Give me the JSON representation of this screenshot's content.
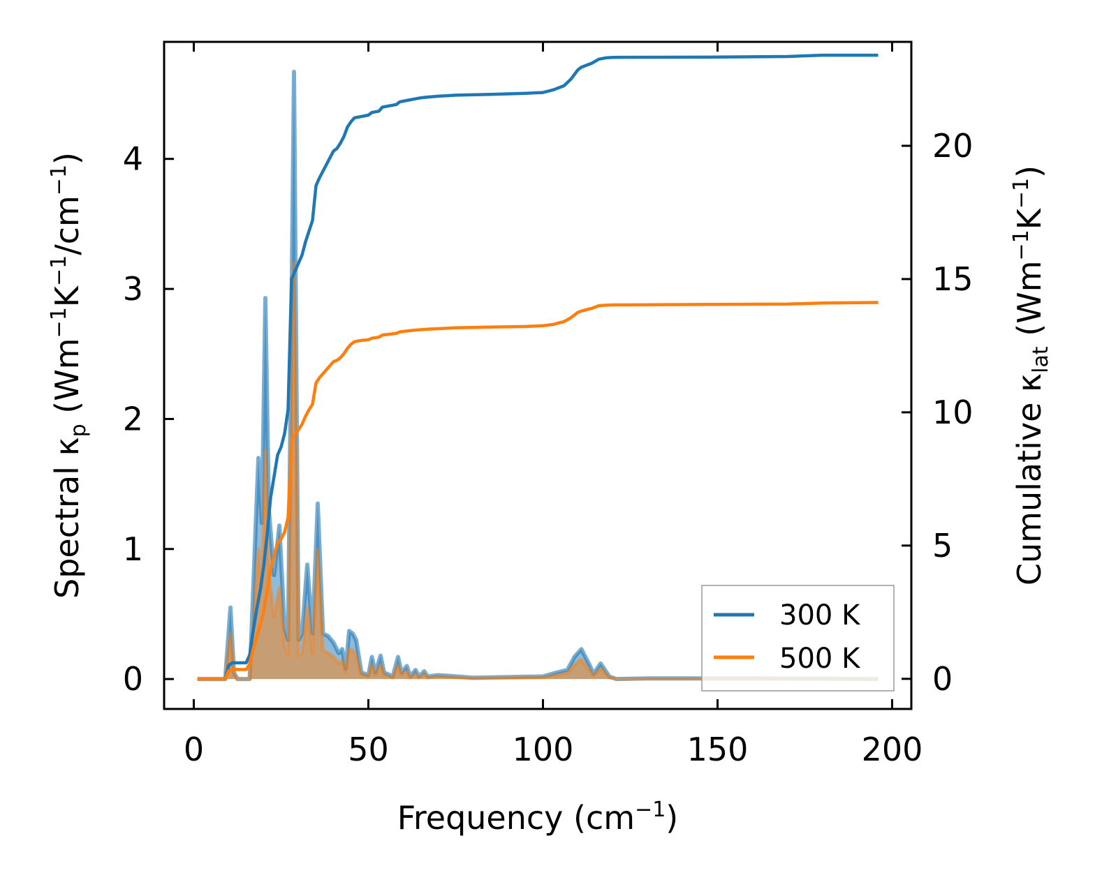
{
  "chart_data": {
    "type": "line",
    "title": "",
    "xlabel": {
      "base": "Frequency (cm",
      "sup": "−1",
      "tail": ")"
    },
    "ylabel_left": {
      "parts": [
        "Spectral κ",
        "p",
        " (Wm",
        "−1",
        "K",
        "−1",
        "/cm",
        "−1",
        ")"
      ],
      "kinds": [
        "n",
        "sub",
        "n",
        "sup",
        "n",
        "sup",
        "n",
        "sup",
        "n"
      ]
    },
    "ylabel_right": {
      "parts": [
        "Cumulative κ",
        "lat",
        " (Wm",
        "−1",
        "K",
        "−1",
        ")"
      ],
      "kinds": [
        "n",
        "sub",
        "n",
        "sup",
        "n",
        "sup",
        "n"
      ]
    },
    "xlim": [
      -8.5,
      205.5
    ],
    "ylim_left": [
      -0.23,
      4.9
    ],
    "ylim_right": [
      -1.13,
      23.9
    ],
    "x_ticks": [
      0,
      50,
      100,
      150,
      200
    ],
    "x_tick_labels": [
      "0",
      "50",
      "100",
      "150",
      "200"
    ],
    "y_left_ticks": [
      0,
      1,
      2,
      3,
      4
    ],
    "y_left_tick_labels": [
      "0",
      "1",
      "2",
      "3",
      "4"
    ],
    "y_right_ticks": [
      0,
      5,
      10,
      15,
      20
    ],
    "y_right_tick_labels": [
      "0",
      "5",
      "10",
      "15",
      "20"
    ],
    "legend": {
      "position": "lower-right",
      "entries": [
        "300 K",
        "500 K"
      ]
    },
    "grid": false,
    "colors": {
      "t300": "#1f77b4",
      "t500": "#ff7f0e"
    },
    "spectral": {
      "300 K": [
        [
          1,
          0
        ],
        [
          9,
          0
        ],
        [
          10.5,
          0.55
        ],
        [
          11.5,
          0.05
        ],
        [
          12.5,
          0
        ],
        [
          16,
          0
        ],
        [
          18.5,
          1.7
        ],
        [
          19.5,
          1.2
        ],
        [
          20.5,
          2.93
        ],
        [
          21.5,
          1.3
        ],
        [
          23,
          0.8
        ],
        [
          24.5,
          1.18
        ],
        [
          26,
          0.4
        ],
        [
          27,
          0.3
        ],
        [
          28.7,
          4.67
        ],
        [
          30,
          0.3
        ],
        [
          31,
          0.35
        ],
        [
          32.5,
          0.88
        ],
        [
          34,
          0.35
        ],
        [
          35.5,
          1.35
        ],
        [
          37,
          0.35
        ],
        [
          38.5,
          0.33
        ],
        [
          40,
          0.28
        ],
        [
          41.5,
          0.2
        ],
        [
          42.5,
          0.23
        ],
        [
          43.5,
          0.08
        ],
        [
          44.5,
          0.37
        ],
        [
          45.5,
          0.35
        ],
        [
          46.5,
          0.3
        ],
        [
          48,
          0.05
        ],
        [
          50,
          0.03
        ],
        [
          51,
          0.17
        ],
        [
          52,
          0.05
        ],
        [
          53.5,
          0.18
        ],
        [
          54.5,
          0.05
        ],
        [
          57,
          0.02
        ],
        [
          58.5,
          0.17
        ],
        [
          59.5,
          0.05
        ],
        [
          61,
          0.1
        ],
        [
          62,
          0.02
        ],
        [
          63.5,
          0.07
        ],
        [
          64.5,
          0.02
        ],
        [
          66,
          0.06
        ],
        [
          67,
          0.02
        ],
        [
          70,
          0.03
        ],
        [
          80,
          0.01
        ],
        [
          100,
          0.02
        ],
        [
          104,
          0.05
        ],
        [
          107,
          0.07
        ],
        [
          109,
          0.17
        ],
        [
          111,
          0.23
        ],
        [
          113.5,
          0.1
        ],
        [
          114.5,
          0.04
        ],
        [
          116.5,
          0.12
        ],
        [
          119,
          0.02
        ],
        [
          121,
          0
        ],
        [
          130,
          0.005
        ],
        [
          160,
          0.005
        ],
        [
          196,
          0
        ]
      ],
      "500 K": [
        [
          1,
          0
        ],
        [
          9,
          0
        ],
        [
          10.5,
          0.35
        ],
        [
          11.5,
          0.03
        ],
        [
          12.5,
          0
        ],
        [
          16,
          0
        ],
        [
          18.5,
          1.0
        ],
        [
          19.5,
          0.7
        ],
        [
          20.5,
          1.76
        ],
        [
          21.5,
          0.8
        ],
        [
          23,
          0.48
        ],
        [
          24.5,
          0.7
        ],
        [
          26,
          0.25
        ],
        [
          27,
          0.18
        ],
        [
          28.7,
          3.2
        ],
        [
          30,
          0.18
        ],
        [
          31,
          0.2
        ],
        [
          32.5,
          0.55
        ],
        [
          34,
          0.2
        ],
        [
          35.5,
          1.0
        ],
        [
          37,
          0.22
        ],
        [
          38.5,
          0.2
        ],
        [
          40,
          0.17
        ],
        [
          41.5,
          0.12
        ],
        [
          42.5,
          0.14
        ],
        [
          43.5,
          0.05
        ],
        [
          44.5,
          0.23
        ],
        [
          45.5,
          0.22
        ],
        [
          46.5,
          0.18
        ],
        [
          48,
          0.03
        ],
        [
          50,
          0.02
        ],
        [
          51,
          0.11
        ],
        [
          52,
          0.03
        ],
        [
          53.5,
          0.11
        ],
        [
          54.5,
          0.03
        ],
        [
          57,
          0.01
        ],
        [
          58.5,
          0.11
        ],
        [
          59.5,
          0.03
        ],
        [
          61,
          0.06
        ],
        [
          62,
          0.01
        ],
        [
          63.5,
          0.04
        ],
        [
          64.5,
          0.01
        ],
        [
          66,
          0.04
        ],
        [
          67,
          0.01
        ],
        [
          70,
          0.02
        ],
        [
          80,
          0.005
        ],
        [
          100,
          0.012
        ],
        [
          104,
          0.03
        ],
        [
          107,
          0.045
        ],
        [
          109,
          0.11
        ],
        [
          111,
          0.15
        ],
        [
          113.5,
          0.06
        ],
        [
          114.5,
          0.025
        ],
        [
          116.5,
          0.08
        ],
        [
          119,
          0.012
        ],
        [
          121,
          0
        ],
        [
          130,
          0.003
        ],
        [
          160,
          0.003
        ],
        [
          196,
          0
        ]
      ]
    },
    "cumulative": {
      "300 K": [
        [
          1,
          0
        ],
        [
          9,
          0
        ],
        [
          10,
          0.5
        ],
        [
          11,
          0.6
        ],
        [
          15,
          0.6
        ],
        [
          16,
          0.9
        ],
        [
          17,
          1.8
        ],
        [
          18,
          2.6
        ],
        [
          19,
          3.3
        ],
        [
          20,
          4.2
        ],
        [
          21,
          5.4
        ],
        [
          22,
          6.8
        ],
        [
          23,
          7.6
        ],
        [
          24,
          8.4
        ],
        [
          25,
          8.7
        ],
        [
          26,
          9.2
        ],
        [
          27,
          10.1
        ],
        [
          28,
          15
        ],
        [
          29,
          15.3
        ],
        [
          30,
          15.6
        ],
        [
          31,
          15.9
        ],
        [
          32,
          16.4
        ],
        [
          33,
          16.8
        ],
        [
          34,
          17.2
        ],
        [
          35,
          18.5
        ],
        [
          36,
          18.8
        ],
        [
          38,
          19.3
        ],
        [
          40,
          19.8
        ],
        [
          41,
          19.9
        ],
        [
          42,
          20.1
        ],
        [
          43,
          20.35
        ],
        [
          44,
          20.7
        ],
        [
          45,
          20.9
        ],
        [
          46,
          21.05
        ],
        [
          48,
          21.1
        ],
        [
          50,
          21.15
        ],
        [
          51,
          21.25
        ],
        [
          53,
          21.3
        ],
        [
          54,
          21.45
        ],
        [
          56,
          21.5
        ],
        [
          58,
          21.55
        ],
        [
          59,
          21.65
        ],
        [
          61,
          21.7
        ],
        [
          63,
          21.75
        ],
        [
          65,
          21.8
        ],
        [
          67,
          21.83
        ],
        [
          70,
          21.86
        ],
        [
          75,
          21.9
        ],
        [
          85,
          21.93
        ],
        [
          95,
          21.97
        ],
        [
          100,
          22.0
        ],
        [
          103,
          22.1
        ],
        [
          105,
          22.2
        ],
        [
          106,
          22.25
        ],
        [
          108,
          22.5
        ],
        [
          110,
          22.85
        ],
        [
          111,
          22.95
        ],
        [
          113,
          23.05
        ],
        [
          114,
          23.1
        ],
        [
          116,
          23.25
        ],
        [
          118,
          23.3
        ],
        [
          120,
          23.32
        ],
        [
          150,
          23.33
        ],
        [
          170,
          23.35
        ],
        [
          180,
          23.4
        ],
        [
          196,
          23.4
        ]
      ],
      "500 K": [
        [
          1,
          0
        ],
        [
          9,
          0
        ],
        [
          10,
          0.3
        ],
        [
          11,
          0.35
        ],
        [
          15,
          0.35
        ],
        [
          16,
          0.55
        ],
        [
          17,
          1.1
        ],
        [
          18,
          1.55
        ],
        [
          19,
          2.0
        ],
        [
          20,
          2.5
        ],
        [
          21,
          3.3
        ],
        [
          22,
          4.1
        ],
        [
          23,
          4.6
        ],
        [
          24,
          5.1
        ],
        [
          25,
          5.25
        ],
        [
          26,
          5.5
        ],
        [
          27,
          6.05
        ],
        [
          28,
          9.0
        ],
        [
          29,
          9.2
        ],
        [
          30,
          9.35
        ],
        [
          31,
          9.55
        ],
        [
          32,
          9.85
        ],
        [
          33,
          10.1
        ],
        [
          34,
          10.3
        ],
        [
          35,
          11.1
        ],
        [
          36,
          11.3
        ],
        [
          38,
          11.6
        ],
        [
          40,
          11.9
        ],
        [
          41,
          11.95
        ],
        [
          42,
          12.05
        ],
        [
          43,
          12.2
        ],
        [
          44,
          12.4
        ],
        [
          45,
          12.55
        ],
        [
          46,
          12.65
        ],
        [
          48,
          12.7
        ],
        [
          50,
          12.72
        ],
        [
          51,
          12.78
        ],
        [
          53,
          12.82
        ],
        [
          54,
          12.9
        ],
        [
          56,
          12.93
        ],
        [
          58,
          12.96
        ],
        [
          59,
          13.02
        ],
        [
          61,
          13.05
        ],
        [
          63,
          13.08
        ],
        [
          65,
          13.1
        ],
        [
          67,
          13.12
        ],
        [
          70,
          13.14
        ],
        [
          75,
          13.17
        ],
        [
          85,
          13.2
        ],
        [
          95,
          13.22
        ],
        [
          100,
          13.25
        ],
        [
          103,
          13.3
        ],
        [
          105,
          13.37
        ],
        [
          106,
          13.4
        ],
        [
          108,
          13.55
        ],
        [
          110,
          13.75
        ],
        [
          111,
          13.8
        ],
        [
          113,
          13.87
        ],
        [
          114,
          13.9
        ],
        [
          116,
          14.0
        ],
        [
          118,
          14.02
        ],
        [
          120,
          14.03
        ],
        [
          150,
          14.05
        ],
        [
          170,
          14.06
        ],
        [
          180,
          14.1
        ],
        [
          196,
          14.12
        ]
      ]
    }
  }
}
